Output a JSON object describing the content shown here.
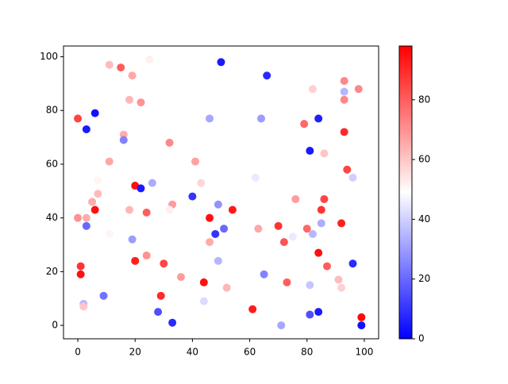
{
  "chart_data": {
    "type": "scatter",
    "x": [
      0,
      3,
      6,
      0,
      3,
      5,
      6,
      7,
      1,
      1,
      2,
      2,
      3,
      9,
      11,
      15,
      19,
      18,
      22,
      16,
      16,
      11,
      20,
      22,
      26,
      18,
      24,
      19,
      20,
      24,
      30,
      29,
      28,
      33,
      36,
      32,
      33,
      32,
      41,
      43,
      40,
      44,
      44,
      46,
      46,
      48,
      49,
      49,
      51,
      50,
      46,
      54,
      52,
      61,
      63,
      62,
      64,
      66,
      65,
      70,
      72,
      71,
      73,
      75,
      76,
      79,
      80,
      82,
      81,
      82,
      84,
      84,
      85,
      86,
      85,
      86,
      87,
      81,
      81,
      84,
      93,
      93,
      93,
      98,
      93,
      94,
      96,
      92,
      91,
      92,
      96,
      99,
      99,
      25,
      7,
      11
    ],
    "values": [
      77,
      73,
      79,
      40,
      40,
      46,
      43,
      49,
      22,
      19,
      8,
      7,
      37,
      11,
      97,
      96,
      93,
      84,
      83,
      71,
      69,
      61,
      52,
      51,
      53,
      43,
      42,
      32,
      24,
      26,
      23,
      11,
      5,
      1,
      18,
      68,
      45,
      43,
      61,
      53,
      48,
      16,
      9,
      40,
      31,
      34,
      45,
      24,
      36,
      98,
      77,
      43,
      14,
      6,
      36,
      55,
      77,
      93,
      19,
      37,
      31,
      0,
      16,
      33,
      47,
      75,
      36,
      34,
      65,
      88,
      77,
      27,
      43,
      47,
      38,
      64,
      22,
      15,
      4,
      5,
      91,
      87,
      84,
      88,
      72,
      58,
      55,
      38,
      17,
      14,
      23,
      3,
      0,
      99,
      54,
      34
    ],
    "color_values": [
      85,
      5,
      3,
      70,
      65,
      65,
      95,
      62,
      88,
      95,
      35,
      60,
      20,
      22,
      62,
      80,
      66,
      63,
      70,
      65,
      25,
      66,
      95,
      5,
      33,
      63,
      80,
      30,
      92,
      70,
      85,
      90,
      15,
      8,
      68,
      72,
      68,
      52,
      67,
      57,
      10,
      95,
      42,
      95,
      65,
      10,
      28,
      35,
      20,
      5,
      32,
      93,
      63,
      93,
      66,
      45,
      30,
      8,
      25,
      88,
      82,
      32,
      80,
      45,
      68,
      78,
      78,
      35,
      5,
      58,
      6,
      95,
      88,
      85,
      33,
      60,
      80,
      38,
      15,
      5,
      72,
      35,
      72,
      72,
      90,
      85,
      40,
      92,
      62,
      58,
      8,
      96,
      3,
      52,
      51,
      51
    ],
    "colormap": "bwr",
    "xlim": [
      -5,
      105
    ],
    "ylim": [
      -5,
      104
    ],
    "clim": [
      0,
      98
    ],
    "xticks": [
      0,
      20,
      40,
      60,
      80,
      100
    ],
    "yticks": [
      0,
      20,
      40,
      60,
      80,
      100
    ],
    "cticks": [
      0,
      20,
      40,
      60,
      80
    ]
  }
}
